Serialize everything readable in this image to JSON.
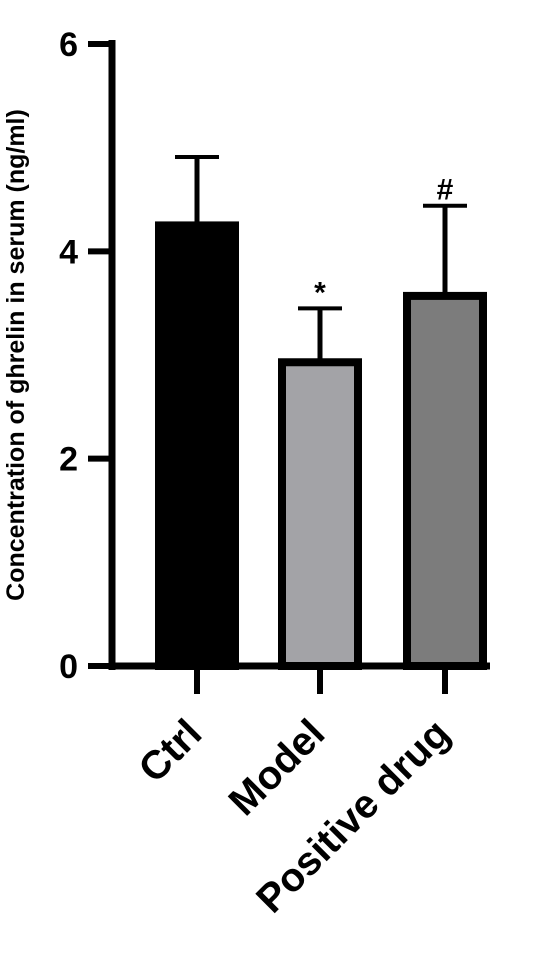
{
  "chart_data": {
    "type": "bar",
    "title": "",
    "xlabel": "",
    "ylabel": "Concentration of ghrelin in serum (ng/ml)",
    "ylim": [
      0,
      6
    ],
    "yticks": [
      "0",
      "2",
      "4",
      "6"
    ],
    "categories": [
      "Ctrl",
      "Model",
      "Positive drug"
    ],
    "values": [
      4.25,
      2.93,
      3.57
    ],
    "errors": [
      0.66,
      0.52,
      0.87
    ],
    "significance": [
      "",
      "*",
      "#"
    ],
    "colors": [
      "#000000",
      "#a3a3a7",
      "#7c7c7c"
    ],
    "grid": false,
    "legend": "none"
  }
}
